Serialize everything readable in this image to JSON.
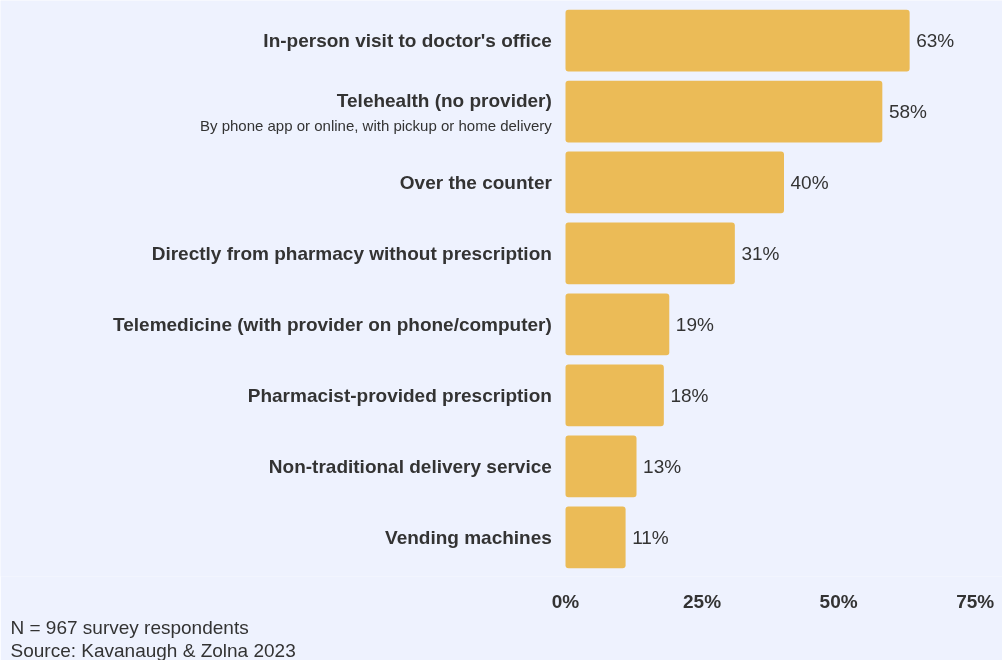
{
  "chart_data": {
    "type": "bar",
    "orientation": "horizontal",
    "categories": [
      "In-person visit to doctor's office",
      "Telehealth (no provider)\nBy phone app or online, with pickup or home delivery",
      "Over the counter",
      "Directly from pharmacy without prescription",
      "Telemedicine (with provider on phone/computer)",
      "Pharmacist-provided prescription",
      "Non-traditional delivery service",
      "Vending machines"
    ],
    "values": [
      63,
      58,
      40,
      31,
      19,
      18,
      13,
      11
    ],
    "value_labels": [
      "63%",
      "58%",
      "40%",
      "31%",
      "19%",
      "18%",
      "13%",
      "11%"
    ],
    "color": "#ebbb57",
    "xlim": [
      0,
      80
    ],
    "xticks": [
      {
        "value": 0,
        "label": "0%"
      },
      {
        "value": 25,
        "label": "25%"
      },
      {
        "value": 50,
        "label": "50%"
      },
      {
        "value": 75,
        "label": "75%"
      }
    ],
    "annotations": [
      "N = 967 survey respondents",
      "Source: Kavanaugh & Zolna 2023"
    ]
  }
}
